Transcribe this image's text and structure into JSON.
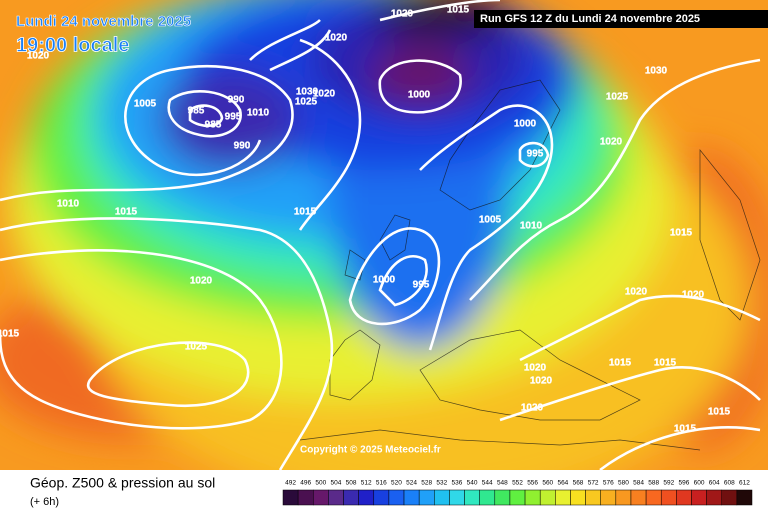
{
  "header": {
    "date": "Lundi 24 novembre 2025",
    "time": "19:00 locale",
    "run": "Run GFS 12 Z du Lundi 24 novembre 2025"
  },
  "copyright": "Copyright © 2025 Meteociel.fr",
  "footer": {
    "title": "Géop. Z500 & pression au sol",
    "subtitle": "(+ 6h)"
  },
  "legend": {
    "values": [
      492,
      496,
      500,
      504,
      508,
      512,
      516,
      520,
      524,
      528,
      532,
      536,
      540,
      544,
      548,
      552,
      556,
      560,
      564,
      568,
      572,
      576,
      580,
      584,
      588,
      592,
      596,
      600,
      604,
      608,
      612
    ],
    "colors": [
      "#2a0a3a",
      "#4a1050",
      "#66186a",
      "#5a2a8a",
      "#3a2ab0",
      "#2020c8",
      "#1840e0",
      "#1a60f0",
      "#1a80f8",
      "#20a0f8",
      "#20c0f0",
      "#30d8e8",
      "#30e8c0",
      "#30e890",
      "#40e860",
      "#60f040",
      "#90f030",
      "#c0f030",
      "#e8f030",
      "#f8e020",
      "#f8c820",
      "#f8b020",
      "#f89820",
      "#f88020",
      "#f86820",
      "#f05020",
      "#e03820",
      "#c82020",
      "#a01818",
      "#701010",
      "#200808"
    ]
  },
  "isobar_labels": [
    1020,
    1015,
    1020,
    1020,
    1005,
    985,
    990,
    985,
    995,
    1010,
    1030,
    1025,
    1020,
    990,
    1000,
    1030,
    1025,
    1020,
    1000,
    995,
    1010,
    1015,
    1015,
    1005,
    1010,
    1015,
    1020,
    1000,
    995,
    1020,
    1020,
    1025,
    1015,
    1020,
    1020,
    1015,
    1015,
    1020,
    1015,
    1015
  ]
}
